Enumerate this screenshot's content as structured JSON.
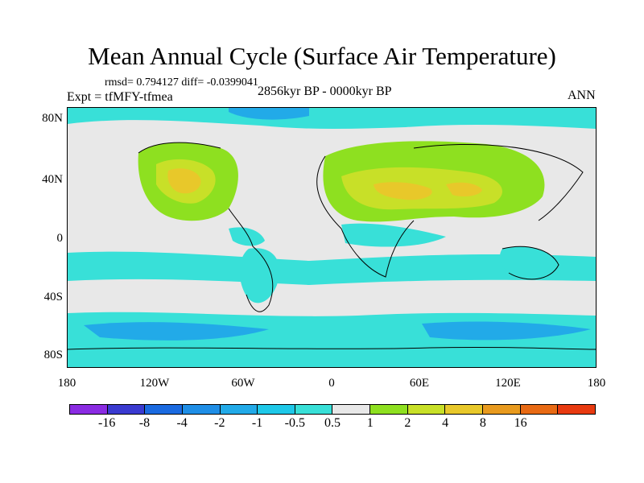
{
  "title": "Mean Annual Cycle (Surface Air Temperature)",
  "stats": "rmsd= 0.794127 diff= -0.0399041",
  "expt": "Expt = tfMFY-tfmea",
  "period": "2856kyr BP - 0000kyr BP",
  "season": "ANN",
  "y_axis_labels": [
    "80N",
    "40N",
    "0",
    "40S",
    "80S"
  ],
  "x_axis_labels": [
    "180",
    "120W",
    "60W",
    "0",
    "60E",
    "120E",
    "180"
  ],
  "colorbar": {
    "labels": [
      "-16",
      "-8",
      "-4",
      "-2",
      "-1",
      "-0.5",
      "0.5",
      "1",
      "2",
      "4",
      "8",
      "16"
    ],
    "colors": [
      "#8a2be2",
      "#3a3ad0",
      "#1a6ae0",
      "#1f8ee6",
      "#22aae8",
      "#1ec8e8",
      "#38e0d8",
      "#e8e8e8",
      "#8ee020",
      "#c8e028",
      "#e8c82a",
      "#e89a1e",
      "#e86a14",
      "#e83a10"
    ]
  },
  "colors": {
    "ocean_bg": "#e8e8e8",
    "cool": "#22c8e0",
    "cold": "#1fa8e8",
    "warm": "#8ee020",
    "warmer": "#c8e028",
    "hot": "#e8c82a"
  }
}
